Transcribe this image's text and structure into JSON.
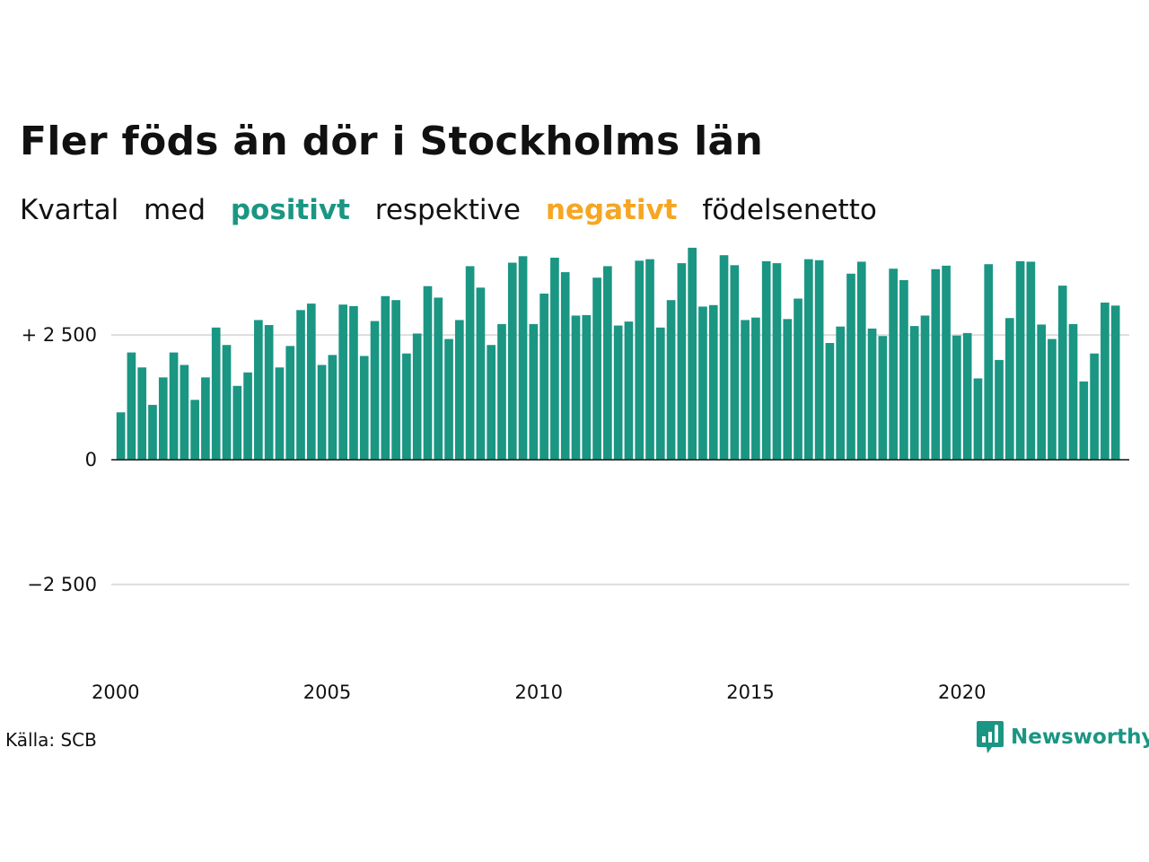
{
  "title": "Fler föds än dör i Stockholms län",
  "subtitle": {
    "part1": "Kvartal",
    "part2": "med",
    "positive_word": "positivt",
    "part3": "respektive",
    "negative_word": "negativt",
    "part4": "födelsenetto"
  },
  "source": "Källa: SCB",
  "brand": {
    "name": "Newsworthy",
    "icon": "newsworthy-logo-icon"
  },
  "colors": {
    "positive": "#1a9683",
    "negative": "#f5a623",
    "text": "#111111",
    "grid": "#dddddd"
  },
  "chart_data": {
    "type": "bar",
    "x_start": 2000.0,
    "x_step": 0.25,
    "xlim": [
      1999.9,
      2023.95
    ],
    "ylim": [
      -4500,
      4500
    ],
    "yticks": [
      2500,
      0,
      -2500
    ],
    "ytick_labels": [
      "+ 2 500",
      "0",
      "−2 500"
    ],
    "xticks": [
      2000,
      2005,
      2010,
      2015,
      2020
    ],
    "xtick_labels": [
      "2000",
      "2005",
      "2010",
      "2015",
      "2020"
    ],
    "grid": true,
    "values": [
      950,
      2150,
      1850,
      1100,
      1650,
      2150,
      1900,
      1200,
      1650,
      2650,
      2300,
      1480,
      1750,
      2800,
      2700,
      1850,
      2280,
      3000,
      3130,
      1900,
      2100,
      3110,
      3080,
      2080,
      2780,
      3280,
      3200,
      2130,
      2530,
      3480,
      3250,
      2420,
      2800,
      3880,
      3450,
      2300,
      2720,
      3950,
      4080,
      2720,
      3330,
      4050,
      3760,
      2890,
      2900,
      3650,
      3880,
      2690,
      2770,
      3990,
      4020,
      2650,
      3200,
      3940,
      4250,
      3070,
      3100,
      4100,
      3900,
      2800,
      2850,
      3980,
      3940,
      2820,
      3230,
      4020,
      4000,
      2340,
      2670,
      3730,
      3970,
      2630,
      2480,
      3830,
      3600,
      2680,
      2890,
      3820,
      3890,
      2490,
      2540,
      1630,
      3920,
      2000,
      2840,
      3980,
      3970,
      2710,
      2420,
      3490,
      2720,
      1570,
      2130,
      3150,
      3090
    ]
  }
}
